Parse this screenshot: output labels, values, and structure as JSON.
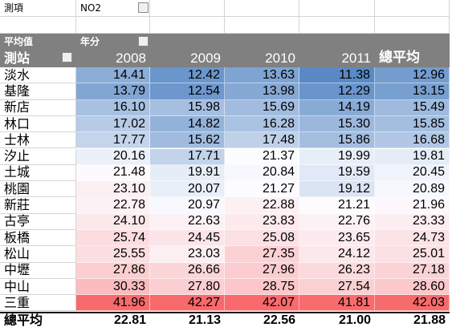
{
  "filter": {
    "label": "測項",
    "value": "NO2"
  },
  "table": {
    "corner": "平均值",
    "column_field": "年分",
    "row_field": "測站",
    "columns": [
      "2008",
      "2009",
      "2010",
      "2011",
      "總平均"
    ],
    "rows": [
      {
        "name": "淡水",
        "values": [
          "14.41",
          "12.42",
          "13.63",
          "11.38",
          "12.96"
        ]
      },
      {
        "name": "基隆",
        "values": [
          "13.79",
          "12.54",
          "13.98",
          "12.29",
          "13.15"
        ]
      },
      {
        "name": "新店",
        "values": [
          "16.10",
          "15.98",
          "15.69",
          "14.19",
          "15.49"
        ]
      },
      {
        "name": "林口",
        "values": [
          "17.02",
          "14.82",
          "16.28",
          "15.30",
          "15.85"
        ]
      },
      {
        "name": "士林",
        "values": [
          "17.77",
          "15.62",
          "17.48",
          "15.86",
          "16.68"
        ]
      },
      {
        "name": "汐止",
        "values": [
          "20.16",
          "17.71",
          "21.37",
          "19.99",
          "19.81"
        ]
      },
      {
        "name": "土城",
        "values": [
          "21.48",
          "19.91",
          "20.84",
          "19.59",
          "20.45"
        ]
      },
      {
        "name": "桃園",
        "values": [
          "23.10",
          "20.07",
          "21.27",
          "19.12",
          "20.89"
        ]
      },
      {
        "name": "新莊",
        "values": [
          "22.78",
          "20.97",
          "22.88",
          "21.21",
          "21.96"
        ]
      },
      {
        "name": "古亭",
        "values": [
          "24.10",
          "22.63",
          "23.83",
          "22.76",
          "23.33"
        ]
      },
      {
        "name": "板橋",
        "values": [
          "25.74",
          "24.45",
          "25.08",
          "23.65",
          "24.73"
        ]
      },
      {
        "name": "松山",
        "values": [
          "25.55",
          "23.03",
          "27.35",
          "24.12",
          "25.01"
        ]
      },
      {
        "name": "中壢",
        "values": [
          "27.86",
          "26.66",
          "27.96",
          "26.23",
          "27.18"
        ]
      },
      {
        "name": "中山",
        "values": [
          "30.33",
          "27.80",
          "28.75",
          "27.54",
          "28.60"
        ]
      },
      {
        "name": "三重",
        "values": [
          "41.96",
          "42.27",
          "42.07",
          "41.81",
          "42.03"
        ]
      }
    ],
    "total": {
      "name": "總平均",
      "values": [
        "22.81",
        "21.13",
        "22.56",
        "21.00",
        "21.88"
      ]
    }
  }
}
